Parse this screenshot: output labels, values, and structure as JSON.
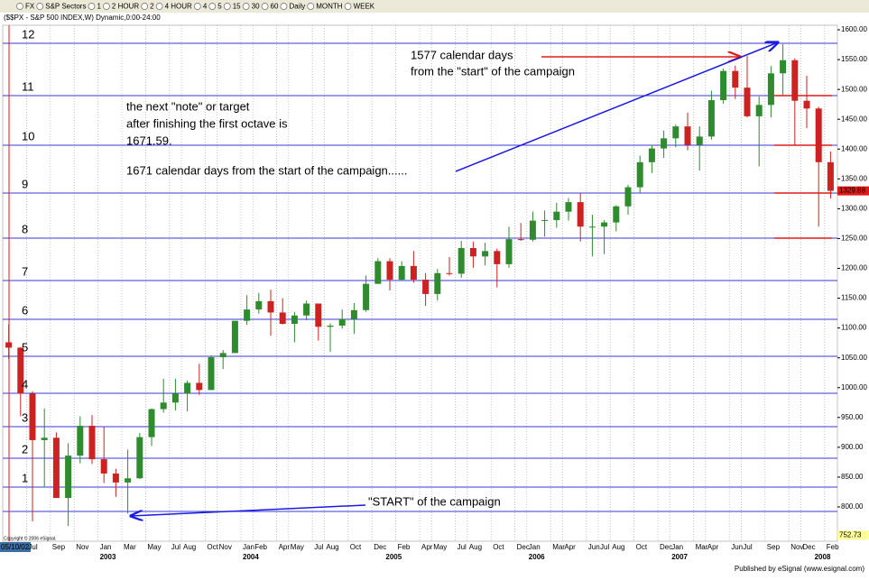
{
  "toolbar": [
    "FX",
    "S&P Sectors",
    "1",
    "2 HOUR",
    "2",
    "4 HOUR",
    "4",
    "5",
    "15",
    "30",
    "60",
    "Daily",
    "MONTH",
    "WEEK"
  ],
  "chart_data": {
    "type": "candlestick",
    "title": "($$PX - S&P 500 INDEX,W) Dynamic,0:00-24:00",
    "x": [
      "2002-05",
      "2002-06",
      "2002-07",
      "2002-08",
      "2002-09",
      "2002-10",
      "2002-11",
      "2002-12",
      "2003-01",
      "2003-02",
      "2003-03",
      "2003-04",
      "2003-05",
      "2003-06",
      "2003-07",
      "2003-08",
      "2003-09",
      "2003-10",
      "2003-11",
      "2003-12",
      "2004-01",
      "2004-02",
      "2004-03",
      "2004-04",
      "2004-05",
      "2004-06",
      "2004-07",
      "2004-08",
      "2004-09",
      "2004-10",
      "2004-11",
      "2004-12",
      "2005-01",
      "2005-02",
      "2005-03",
      "2005-04",
      "2005-05",
      "2005-06",
      "2005-07",
      "2005-08",
      "2005-09",
      "2005-10",
      "2005-11",
      "2005-12",
      "2006-01",
      "2006-02",
      "2006-03",
      "2006-04",
      "2006-05",
      "2006-06",
      "2006-07",
      "2006-08",
      "2006-09",
      "2006-10",
      "2006-11",
      "2006-12",
      "2007-01",
      "2007-02",
      "2007-03",
      "2007-04",
      "2007-05",
      "2007-06",
      "2007-07",
      "2007-08",
      "2007-09",
      "2007-10",
      "2007-11",
      "2007-12",
      "2008-01",
      "2008-02"
    ],
    "open": [
      1076,
      1067,
      990,
      912,
      916,
      815,
      886,
      936,
      880,
      856,
      841,
      848,
      917,
      964,
      975,
      990,
      1008,
      996,
      1051,
      1058,
      1112,
      1131,
      1145,
      1126,
      1107,
      1121,
      1141,
      1102,
      1104,
      1115,
      1130,
      1174,
      1212,
      1181,
      1204,
      1181,
      1157,
      1192,
      1191,
      1234,
      1220,
      1229,
      1207,
      1249,
      1248,
      1280,
      1281,
      1295,
      1311,
      1270,
      1270,
      1277,
      1304,
      1336,
      1378,
      1401,
      1418,
      1438,
      1407,
      1421,
      1482,
      1531,
      1503,
      1455,
      1474,
      1527,
      1549,
      1481,
      1468,
      1378
    ],
    "high": [
      1106,
      1068,
      994,
      965,
      925,
      907,
      952,
      954,
      935,
      864,
      896,
      924,
      965,
      1015,
      1015,
      1012,
      1040,
      1054,
      1063,
      1112,
      1155,
      1159,
      1164,
      1150,
      1127,
      1146,
      1141,
      1108,
      1131,
      1142,
      1188,
      1217,
      1217,
      1212,
      1229,
      1192,
      1199,
      1219,
      1246,
      1245,
      1243,
      1233,
      1270,
      1276,
      1295,
      1297,
      1310,
      1318,
      1326,
      1290,
      1281,
      1306,
      1340,
      1389,
      1407,
      1431,
      1441,
      1461,
      1438,
      1498,
      1535,
      1540,
      1556,
      1488,
      1539,
      1576,
      1552,
      1523,
      1471,
      1396
    ],
    "low": [
      1048,
      952,
      776,
      833,
      815,
      768,
      873,
      872,
      840,
      817,
      789,
      847,
      902,
      958,
      962,
      960,
      988,
      996,
      1031,
      1058,
      1105,
      1124,
      1087,
      1106,
      1076,
      1113,
      1079,
      1060,
      1099,
      1090,
      1127,
      1174,
      1163,
      1180,
      1176,
      1137,
      1146,
      1188,
      1184,
      1201,
      1205,
      1168,
      1201,
      1246,
      1245,
      1253,
      1268,
      1280,
      1245,
      1220,
      1224,
      1262,
      1290,
      1327,
      1360,
      1385,
      1403,
      1398,
      1364,
      1416,
      1476,
      1484,
      1453,
      1371,
      1453,
      1489,
      1407,
      1435,
      1270,
      1317
    ],
    "close": [
      1067,
      990,
      912,
      916,
      815,
      886,
      936,
      880,
      856,
      841,
      848,
      917,
      964,
      975,
      990,
      1008,
      996,
      1051,
      1058,
      1112,
      1131,
      1145,
      1126,
      1107,
      1121,
      1141,
      1102,
      1104,
      1115,
      1130,
      1174,
      1212,
      1181,
      1204,
      1181,
      1157,
      1192,
      1191,
      1234,
      1220,
      1229,
      1207,
      1249,
      1248,
      1280,
      1281,
      1295,
      1311,
      1270,
      1270,
      1277,
      1304,
      1336,
      1378,
      1401,
      1418,
      1438,
      1407,
      1421,
      1482,
      1531,
      1503,
      1455,
      1474,
      1527,
      1549,
      1481,
      1468,
      1378,
      1330
    ],
    "up_color": "#2e8b2e",
    "down_color": "#cc2222",
    "ylim": [
      742.5,
      1607.6
    ],
    "yticks": [
      {
        "value": 800,
        "label": "800.00"
      },
      {
        "value": 850,
        "label": "850.00"
      },
      {
        "value": 900,
        "label": "900.00"
      },
      {
        "value": 950,
        "label": "950.00"
      },
      {
        "value": 1000,
        "label": "1000.00"
      },
      {
        "value": 1050,
        "label": "1050.00"
      },
      {
        "value": 1100,
        "label": "1100.00"
      },
      {
        "value": 1150,
        "label": "1150.00"
      },
      {
        "value": 1200,
        "label": "1200.00"
      },
      {
        "value": 1250,
        "label": "1250.00"
      },
      {
        "value": 1300,
        "label": "1300.00"
      },
      {
        "value": 1350,
        "label": "1350.00"
      },
      {
        "value": 1400,
        "label": "1400.00"
      },
      {
        "value": 1450,
        "label": "1450.00"
      },
      {
        "value": 1500,
        "label": "1500.00"
      },
      {
        "value": 1550,
        "label": "1550.00"
      },
      {
        "value": 1600,
        "label": "1600.00"
      }
    ],
    "x_labels": [
      "05/10/02",
      "Jul",
      "Sep",
      "Nov",
      "Jan",
      "Mar",
      "May",
      "Jul",
      "Aug",
      "Oct",
      "Nov",
      "Jan",
      "Feb",
      "Apr",
      "May",
      "Jul",
      "Aug",
      "Oct",
      "Dec",
      "Feb",
      "Apr",
      "May",
      "Jul",
      "Aug",
      "Oct",
      "Dec",
      "Jan",
      "Mar",
      "Apr",
      "Jun",
      "Jul",
      "Aug",
      "Oct",
      "Dec",
      "Jan",
      "Mar",
      "Apr",
      "Jun",
      "Jul",
      "Sep",
      "Nov",
      "Dec",
      "Feb"
    ],
    "year_labels": [
      "2003",
      "2004",
      "2005",
      "2006",
      "2007",
      "2008"
    ],
    "levels": [
      {
        "value": 792.4
      },
      {
        "value": 833.3,
        "label": "1"
      },
      {
        "value": 881.7,
        "label": "2"
      },
      {
        "value": 934.6,
        "label": "3"
      },
      {
        "value": 990.5,
        "label": "4"
      },
      {
        "value": 1052.6,
        "label": "5"
      },
      {
        "value": 1114.6,
        "label": "6"
      },
      {
        "value": 1179.6,
        "label": "7"
      },
      {
        "value": 1250.7,
        "label": "8"
      },
      {
        "value": 1326.3,
        "label": "9"
      },
      {
        "value": 1406.4,
        "label": "10"
      },
      {
        "value": 1489.6,
        "label": "11"
      },
      {
        "value": 1577.3,
        "label": "12"
      }
    ],
    "level_color": "#3a3ad8",
    "last_price": {
      "value": 1329.88,
      "label": "1329.88"
    },
    "low_price": {
      "value": 752.73,
      "label": "752.73"
    },
    "annotations": [
      "1577 calendar days",
      "from the \"start\" of the campaign",
      "the next \"note\" or target",
      "after finishing the first octave is",
      "1671.59.",
      "1671 calendar days from the start of the campaign......",
      "\"START\" of the campaign"
    ],
    "grid": true
  },
  "copyright": "Copyright © 2006 eSignal.",
  "footer": "Published by eSignal (www.esignal.com)"
}
